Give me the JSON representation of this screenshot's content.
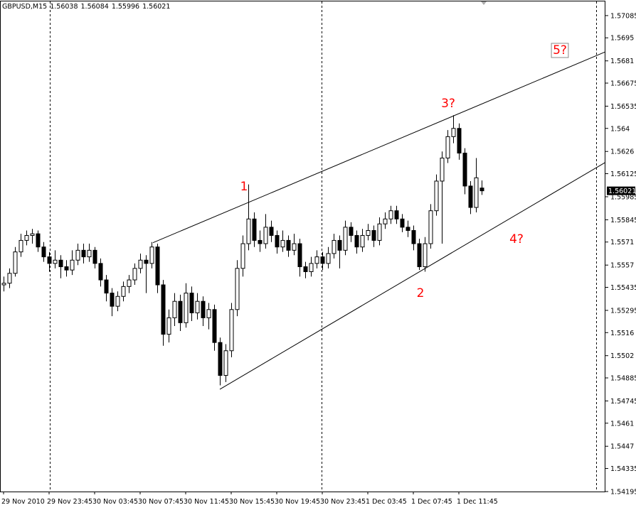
{
  "chart_data": {
    "type": "candlestick",
    "title": "GBPUSD,M15",
    "series": [
      {
        "name": "GBPUSD",
        "open": [
          1.5545,
          1.5546,
          1.5552,
          1.5565,
          1.5572,
          1.5575,
          1.5576,
          1.5568,
          1.5562,
          1.5558,
          1.556,
          1.5556,
          1.5554,
          1.556,
          1.5566,
          1.5562,
          1.5566,
          1.5558,
          1.5548,
          1.554,
          1.5532,
          1.5538,
          1.5544,
          1.5548,
          1.5555,
          1.556,
          1.5558,
          1.5568,
          1.5545,
          1.5515,
          1.5525,
          1.5535,
          1.5522,
          1.554,
          1.5528,
          1.5535,
          1.5525,
          1.553,
          1.551,
          1.549,
          1.5505,
          1.553,
          1.5555,
          1.557,
          1.5585,
          1.5572,
          1.557,
          1.558,
          1.5575,
          1.5568,
          1.5572,
          1.5566,
          1.557,
          1.5556,
          1.5553,
          1.5558,
          1.5562,
          1.5558,
          1.5564,
          1.5572,
          1.5566,
          1.558,
          1.5575,
          1.5568,
          1.5575,
          1.5578,
          1.5572,
          1.5582,
          1.5585,
          1.559,
          1.5585,
          1.558,
          1.5578,
          1.557,
          1.5556,
          1.557,
          1.559,
          1.5608,
          1.5622,
          1.5635,
          1.564,
          1.5625,
          1.5605,
          1.5592,
          1.56038
        ],
        "high": [
          1.555,
          1.5555,
          1.5568,
          1.5576,
          1.5578,
          1.5579,
          1.5578,
          1.5571,
          1.5565,
          1.5566,
          1.5563,
          1.556,
          1.5566,
          1.557,
          1.557,
          1.557,
          1.5568,
          1.5561,
          1.5551,
          1.5543,
          1.5541,
          1.5547,
          1.5551,
          1.5558,
          1.5564,
          1.5563,
          1.5571,
          1.557,
          1.5548,
          1.553,
          1.554,
          1.5539,
          1.5546,
          1.5544,
          1.554,
          1.5538,
          1.5534,
          1.5533,
          1.5513,
          1.5509,
          1.5534,
          1.556,
          1.5575,
          1.5606,
          1.5589,
          1.5578,
          1.5588,
          1.5584,
          1.5578,
          1.5578,
          1.5575,
          1.5576,
          1.5573,
          1.5559,
          1.5562,
          1.5566,
          1.5565,
          1.5568,
          1.5576,
          1.5575,
          1.5584,
          1.5583,
          1.5578,
          1.5579,
          1.5582,
          1.5581,
          1.5586,
          1.5589,
          1.5593,
          1.5593,
          1.5588,
          1.5584,
          1.5581,
          1.5573,
          1.5574,
          1.5594,
          1.5612,
          1.5626,
          1.5639,
          1.5648,
          1.5643,
          1.5628,
          1.5608,
          1.5622,
          1.56084
        ],
        "low": [
          1.5541,
          1.5543,
          1.555,
          1.5562,
          1.5569,
          1.557,
          1.5565,
          1.5559,
          1.5553,
          1.5555,
          1.5549,
          1.555,
          1.5551,
          1.5557,
          1.5558,
          1.5559,
          1.5555,
          1.5544,
          1.5535,
          1.5526,
          1.5529,
          1.5535,
          1.554,
          1.5545,
          1.5552,
          1.554,
          1.5555,
          1.554,
          1.5508,
          1.551,
          1.552,
          1.5517,
          1.5519,
          1.5523,
          1.5524,
          1.552,
          1.5518,
          1.5505,
          1.5484,
          1.5486,
          1.5501,
          1.5526,
          1.555,
          1.5566,
          1.5568,
          1.5565,
          1.5567,
          1.5571,
          1.5564,
          1.5565,
          1.5562,
          1.5563,
          1.555,
          1.5549,
          1.555,
          1.5555,
          1.5554,
          1.5555,
          1.5561,
          1.5555,
          1.5563,
          1.5571,
          1.5564,
          1.5565,
          1.5572,
          1.5568,
          1.5569,
          1.5579,
          1.5582,
          1.5582,
          1.5577,
          1.5574,
          1.5566,
          1.5554,
          1.5553,
          1.5567,
          1.5587,
          1.557,
          1.5619,
          1.5631,
          1.5621,
          1.56,
          1.5588,
          1.5589,
          1.55996
        ],
        "close": [
          1.5546,
          1.5552,
          1.5565,
          1.5572,
          1.5575,
          1.5576,
          1.5568,
          1.5562,
          1.5558,
          1.556,
          1.5556,
          1.5554,
          1.556,
          1.5566,
          1.5562,
          1.5566,
          1.5558,
          1.5548,
          1.554,
          1.5532,
          1.5538,
          1.5544,
          1.5548,
          1.5555,
          1.556,
          1.5558,
          1.5568,
          1.5545,
          1.5515,
          1.5525,
          1.5535,
          1.5522,
          1.554,
          1.5528,
          1.5535,
          1.5525,
          1.553,
          1.551,
          1.549,
          1.5505,
          1.553,
          1.5555,
          1.557,
          1.5585,
          1.5572,
          1.557,
          1.558,
          1.5575,
          1.5568,
          1.5572,
          1.5566,
          1.557,
          1.5556,
          1.5553,
          1.5558,
          1.5562,
          1.5558,
          1.5564,
          1.5572,
          1.5566,
          1.558,
          1.5575,
          1.5568,
          1.5575,
          1.5578,
          1.5572,
          1.5582,
          1.5585,
          1.559,
          1.5585,
          1.558,
          1.5578,
          1.557,
          1.5556,
          1.557,
          1.559,
          1.5608,
          1.5622,
          1.5635,
          1.564,
          1.5625,
          1.5605,
          1.5592,
          1.561,
          1.56021
        ]
      }
    ],
    "ylim": [
      1.54195,
      1.57171
    ],
    "yticks": [
      1.57085,
      1.5695,
      1.5681,
      1.56675,
      1.56535,
      1.564,
      1.5626,
      1.56125,
      1.55985,
      1.55845,
      1.5571,
      1.5557,
      1.55435,
      1.55295,
      1.5516,
      1.5502,
      1.54885,
      1.54745,
      1.5461,
      1.5447,
      1.54335,
      1.54195
    ],
    "xticks": [
      {
        "value": 0,
        "label": "29 Nov 2010"
      },
      {
        "value": 8,
        "label": "29 Nov 23:45"
      },
      {
        "value": 16,
        "label": "30 Nov 03:45"
      },
      {
        "value": 24,
        "label": "30 Nov 07:45"
      },
      {
        "value": 32,
        "label": "30 Nov 11:45"
      },
      {
        "value": 40,
        "label": "30 Nov 15:45"
      },
      {
        "value": 48,
        "label": "30 Nov 19:45"
      },
      {
        "value": 56,
        "label": "30 Nov 23:45"
      },
      {
        "value": 64,
        "label": "1 Dec 03:45"
      },
      {
        "value": 72,
        "label": "1 Dec 07:45"
      },
      {
        "value": 80,
        "label": "1 Dec 11:45"
      }
    ],
    "trendlines": [
      {
        "x": [
          26.25,
          106
        ],
        "y": [
          1.55706,
          1.56865
        ]
      },
      {
        "x": [
          38,
          106
        ],
        "y": [
          1.54816,
          1.56194
        ]
      }
    ],
    "annotations": [
      "1",
      "2",
      "3?",
      "4?",
      "5?"
    ],
    "annotation_color": "#ff0000"
  }
}
